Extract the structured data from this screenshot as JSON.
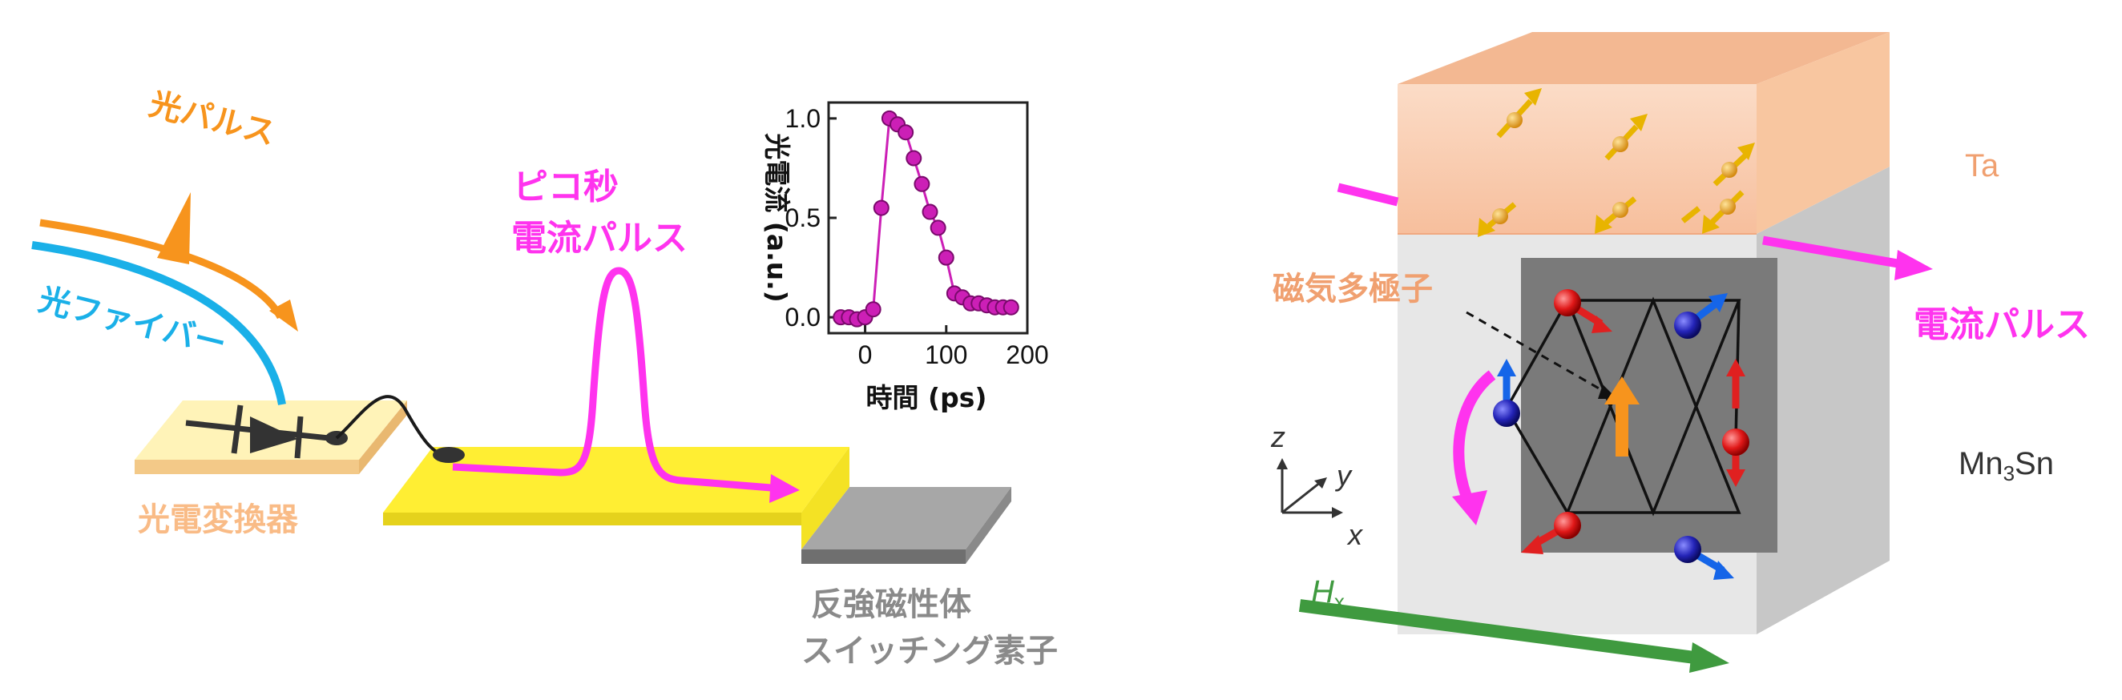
{
  "left_diagram": {
    "labels": {
      "light_pulse": "光パルス",
      "optical_fiber": "光ファイバー",
      "photoconductor": "光電変換器",
      "pico_pulse_line1": "ピコ秒",
      "pico_pulse_line2": "電流パルス",
      "device_line1": "反強磁性体",
      "device_line2": "スイッチング素子"
    },
    "colors": {
      "light_pulse": "#f7941d",
      "fiber": "#1ab0e8",
      "pulse": "#ff33ee",
      "stripline": "#ffee33",
      "converter_label": "#f9bb86",
      "device_label": "#8a8a8a"
    }
  },
  "chart_data": {
    "type": "scatter",
    "ylabel": "光電流 (a.u.)",
    "xlabel": "時間 (ps)",
    "xlim": [
      -45,
      200
    ],
    "ylim": [
      -0.08,
      1.08
    ],
    "xticks": [
      0,
      100,
      200
    ],
    "yticks": [
      0.0,
      0.5,
      1.0
    ],
    "ytick_labels": [
      "0.0",
      "0.5",
      "1.0"
    ],
    "x": [
      -30,
      -20,
      -10,
      0,
      10,
      20,
      30,
      40,
      50,
      60,
      70,
      80,
      90,
      100,
      110,
      120,
      130,
      140,
      150,
      160,
      170,
      180
    ],
    "y": [
      0.0,
      0.0,
      -0.01,
      0.0,
      0.04,
      0.55,
      1.0,
      0.97,
      0.93,
      0.8,
      0.67,
      0.53,
      0.45,
      0.3,
      0.12,
      0.1,
      0.07,
      0.07,
      0.06,
      0.05,
      0.05,
      0.05
    ],
    "color": "#cc1fb6"
  },
  "right_diagram": {
    "labels": {
      "ta": "Ta",
      "current_pulse": "電流パルス",
      "mn_base": "Mn",
      "mn_sub": "3",
      "mn_tail": "Sn",
      "multipole": "磁気多極子",
      "axis_z": "z",
      "axis_y": "y",
      "axis_x": "x",
      "field_h": "H",
      "field_sub": "x"
    },
    "colors": {
      "ta_label": "#f0a070",
      "pulse": "#ff33ee",
      "field": "#3f9a3f",
      "red_atom": "#e02020",
      "blue_atom": "#2030c0",
      "multipole_arrow": "#f7941d"
    }
  }
}
